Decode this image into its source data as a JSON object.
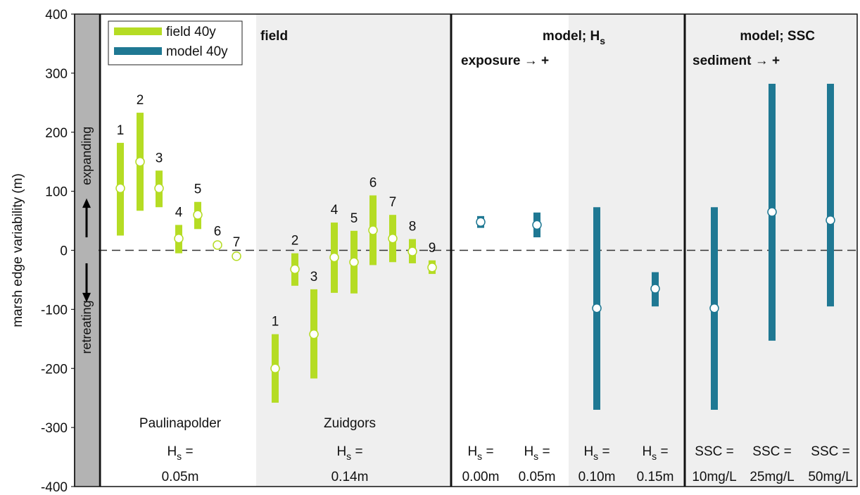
{
  "chart_data": {
    "type": "errorbar",
    "ylabel": "marsh edge variability (m)",
    "ylim": [
      -400,
      400
    ],
    "yticks": [
      -400,
      -300,
      -200,
      -100,
      0,
      100,
      200,
      300,
      400
    ],
    "side_labels": {
      "expanding": "expanding",
      "retreating": "retreating"
    },
    "legend": [
      {
        "name": "field 40y",
        "color": "#b5dc24"
      },
      {
        "name": "model 40y",
        "color": "#1f7893"
      }
    ],
    "panels": [
      {
        "heading": "field",
        "subheading": "",
        "groups": [
          {
            "name": "Paulinapolder",
            "hs_label": "H",
            "hs_sub": "s",
            "hs_eq": " =",
            "hs_value": "0.05m",
            "shaded": false
          },
          {
            "name": "Zuidgors",
            "hs_label": "H",
            "hs_sub": "s",
            "hs_eq": " =",
            "hs_value": "0.14m",
            "shaded": true
          }
        ],
        "series": "field 40y",
        "points": [
          {
            "label": "1",
            "group": 0,
            "center": 105,
            "low": 25,
            "high": 182
          },
          {
            "label": "2",
            "group": 0,
            "center": 150,
            "low": 67,
            "high": 233
          },
          {
            "label": "3",
            "group": 0,
            "center": 105,
            "low": 73,
            "high": 135
          },
          {
            "label": "4",
            "group": 0,
            "center": 20,
            "low": -5,
            "high": 43
          },
          {
            "label": "5",
            "group": 0,
            "center": 60,
            "low": 36,
            "high": 82
          },
          {
            "label": "6",
            "group": 0,
            "center": 9,
            "low": 7,
            "high": 11
          },
          {
            "label": "7",
            "group": 0,
            "center": -10,
            "low": -12,
            "high": -8
          },
          {
            "label": "1",
            "group": 1,
            "center": -200,
            "low": -258,
            "high": -142
          },
          {
            "label": "2",
            "group": 1,
            "center": -32,
            "low": -60,
            "high": -5
          },
          {
            "label": "3",
            "group": 1,
            "center": -142,
            "low": -217,
            "high": -66
          },
          {
            "label": "4",
            "group": 1,
            "center": -12,
            "low": -72,
            "high": 47
          },
          {
            "label": "5",
            "group": 1,
            "center": -20,
            "low": -73,
            "high": 33
          },
          {
            "label": "6",
            "group": 1,
            "center": 34,
            "low": -25,
            "high": 93
          },
          {
            "label": "7",
            "group": 1,
            "center": 20,
            "low": -20,
            "high": 60
          },
          {
            "label": "8",
            "group": 1,
            "center": -2,
            "low": -22,
            "high": 19
          },
          {
            "label": "9",
            "group": 1,
            "center": -29,
            "low": -40,
            "high": -17
          }
        ]
      },
      {
        "heading": "model; H",
        "heading_sub": "s",
        "subheading": "exposure → +",
        "series": "model 40y",
        "shade_from": 2,
        "points": [
          {
            "cat_a": "H",
            "cat_sub": "s",
            "cat_eq": " =",
            "cat_value": "0.00m",
            "center": 48,
            "low": 38,
            "high": 58
          },
          {
            "cat_a": "H",
            "cat_sub": "s",
            "cat_eq": " =",
            "cat_value": "0.05m",
            "center": 43,
            "low": 22,
            "high": 64
          },
          {
            "cat_a": "H",
            "cat_sub": "s",
            "cat_eq": " =",
            "cat_value": "0.10m",
            "center": -98,
            "low": -270,
            "high": 73
          },
          {
            "cat_a": "H",
            "cat_sub": "s",
            "cat_eq": " =",
            "cat_value": "0.15m",
            "center": -65,
            "low": -95,
            "high": -37
          }
        ]
      },
      {
        "heading": "model; SSC",
        "subheading": "sediment → +",
        "series": "model 40y",
        "points": [
          {
            "cat_a": "SSC =",
            "cat_value": "10mg/L",
            "center": -98,
            "low": -270,
            "high": 73
          },
          {
            "cat_a": "SSC =",
            "cat_value": "25mg/L",
            "center": 65,
            "low": -153,
            "high": 282
          },
          {
            "cat_a": "SSC =",
            "cat_value": "50mg/L",
            "center": 51,
            "low": -95,
            "high": 282
          }
        ]
      }
    ]
  }
}
